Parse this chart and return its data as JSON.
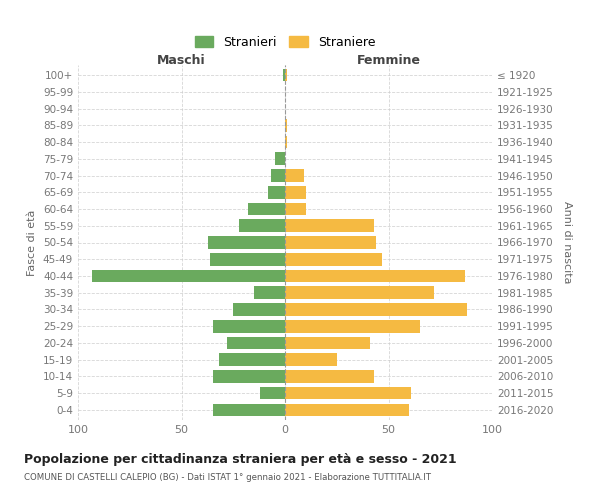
{
  "age_groups": [
    "0-4",
    "5-9",
    "10-14",
    "15-19",
    "20-24",
    "25-29",
    "30-34",
    "35-39",
    "40-44",
    "45-49",
    "50-54",
    "55-59",
    "60-64",
    "65-69",
    "70-74",
    "75-79",
    "80-84",
    "85-89",
    "90-94",
    "95-99",
    "100+"
  ],
  "birth_years": [
    "2016-2020",
    "2011-2015",
    "2006-2010",
    "2001-2005",
    "1996-2000",
    "1991-1995",
    "1986-1990",
    "1981-1985",
    "1976-1980",
    "1971-1975",
    "1966-1970",
    "1961-1965",
    "1956-1960",
    "1951-1955",
    "1946-1950",
    "1941-1945",
    "1936-1940",
    "1931-1935",
    "1926-1930",
    "1921-1925",
    "≤ 1920"
  ],
  "maschi": [
    35,
    12,
    35,
    32,
    28,
    35,
    25,
    15,
    93,
    36,
    37,
    22,
    18,
    8,
    7,
    5,
    0,
    0,
    0,
    0,
    1
  ],
  "femmine": [
    60,
    61,
    43,
    25,
    41,
    65,
    88,
    72,
    87,
    47,
    44,
    43,
    10,
    10,
    9,
    0,
    1,
    1,
    0,
    0,
    1
  ],
  "color_maschi": "#6aaa5e",
  "color_femmine": "#f5ba42",
  "title": "Popolazione per cittadinanza straniera per età e sesso - 2021",
  "subtitle": "COMUNE DI CASTELLI CALEPIO (BG) - Dati ISTAT 1° gennaio 2021 - Elaborazione TUTTITALIA.IT",
  "label_maschi": "Stranieri",
  "label_femmine": "Straniere",
  "xlabel_left": "Maschi",
  "xlabel_right": "Femmine",
  "ylabel_left": "Fasce di età",
  "ylabel_right": "Anni di nascita",
  "xlim": 100,
  "background_color": "#ffffff",
  "grid_color": "#cccccc"
}
